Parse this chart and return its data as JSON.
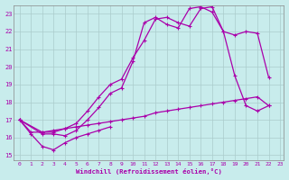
{
  "xlabel": "Windchill (Refroidissement éolien,°C)",
  "bg_color": "#c8ecec",
  "line_color": "#aa00aa",
  "grid_color": "#aacccc",
  "xlim": [
    -0.5,
    23.3
  ],
  "ylim": [
    14.7,
    23.5
  ],
  "yticks": [
    15,
    16,
    17,
    18,
    19,
    20,
    21,
    22,
    23
  ],
  "xticks": [
    0,
    1,
    2,
    3,
    4,
    5,
    6,
    7,
    8,
    9,
    10,
    11,
    12,
    13,
    14,
    15,
    16,
    17,
    18,
    19,
    20,
    21,
    22,
    23
  ],
  "series": [
    {
      "x": [
        0,
        1,
        2,
        3,
        4,
        5,
        6,
        7,
        8
      ],
      "y": [
        17.0,
        16.2,
        15.5,
        15.3,
        15.7,
        16.0,
        16.2,
        16.4,
        16.6
      ]
    },
    {
      "x": [
        0,
        2,
        3,
        4,
        5,
        6,
        7,
        8,
        9,
        10,
        11,
        12,
        13,
        14,
        15,
        16,
        17,
        18,
        19,
        20,
        21,
        22
      ],
      "y": [
        17.0,
        16.3,
        16.3,
        16.5,
        16.8,
        17.5,
        18.3,
        19.0,
        19.3,
        20.5,
        21.5,
        22.7,
        22.8,
        22.5,
        22.3,
        23.3,
        23.4,
        22.0,
        19.5,
        17.8,
        17.5,
        17.8
      ]
    },
    {
      "x": [
        0,
        2,
        3,
        4,
        5,
        6,
        7,
        8,
        9,
        10,
        11,
        12,
        13,
        14,
        15,
        16,
        17,
        18,
        19,
        20,
        21,
        22
      ],
      "y": [
        17.0,
        16.2,
        16.2,
        16.1,
        16.4,
        17.0,
        17.7,
        18.5,
        18.8,
        20.3,
        22.5,
        22.8,
        22.4,
        22.2,
        23.3,
        23.4,
        23.1,
        22.0,
        21.8,
        22.0,
        21.9,
        19.4
      ]
    },
    {
      "x": [
        0,
        1,
        2,
        3,
        4,
        5,
        6,
        7,
        8,
        9,
        10,
        11,
        12,
        13,
        14,
        15,
        16,
        17,
        18,
        19,
        20,
        21,
        22
      ],
      "y": [
        17.0,
        16.3,
        16.3,
        16.4,
        16.5,
        16.6,
        16.7,
        16.8,
        16.9,
        17.0,
        17.1,
        17.2,
        17.4,
        17.5,
        17.6,
        17.7,
        17.8,
        17.9,
        18.0,
        18.1,
        18.2,
        18.3,
        17.8
      ]
    }
  ]
}
